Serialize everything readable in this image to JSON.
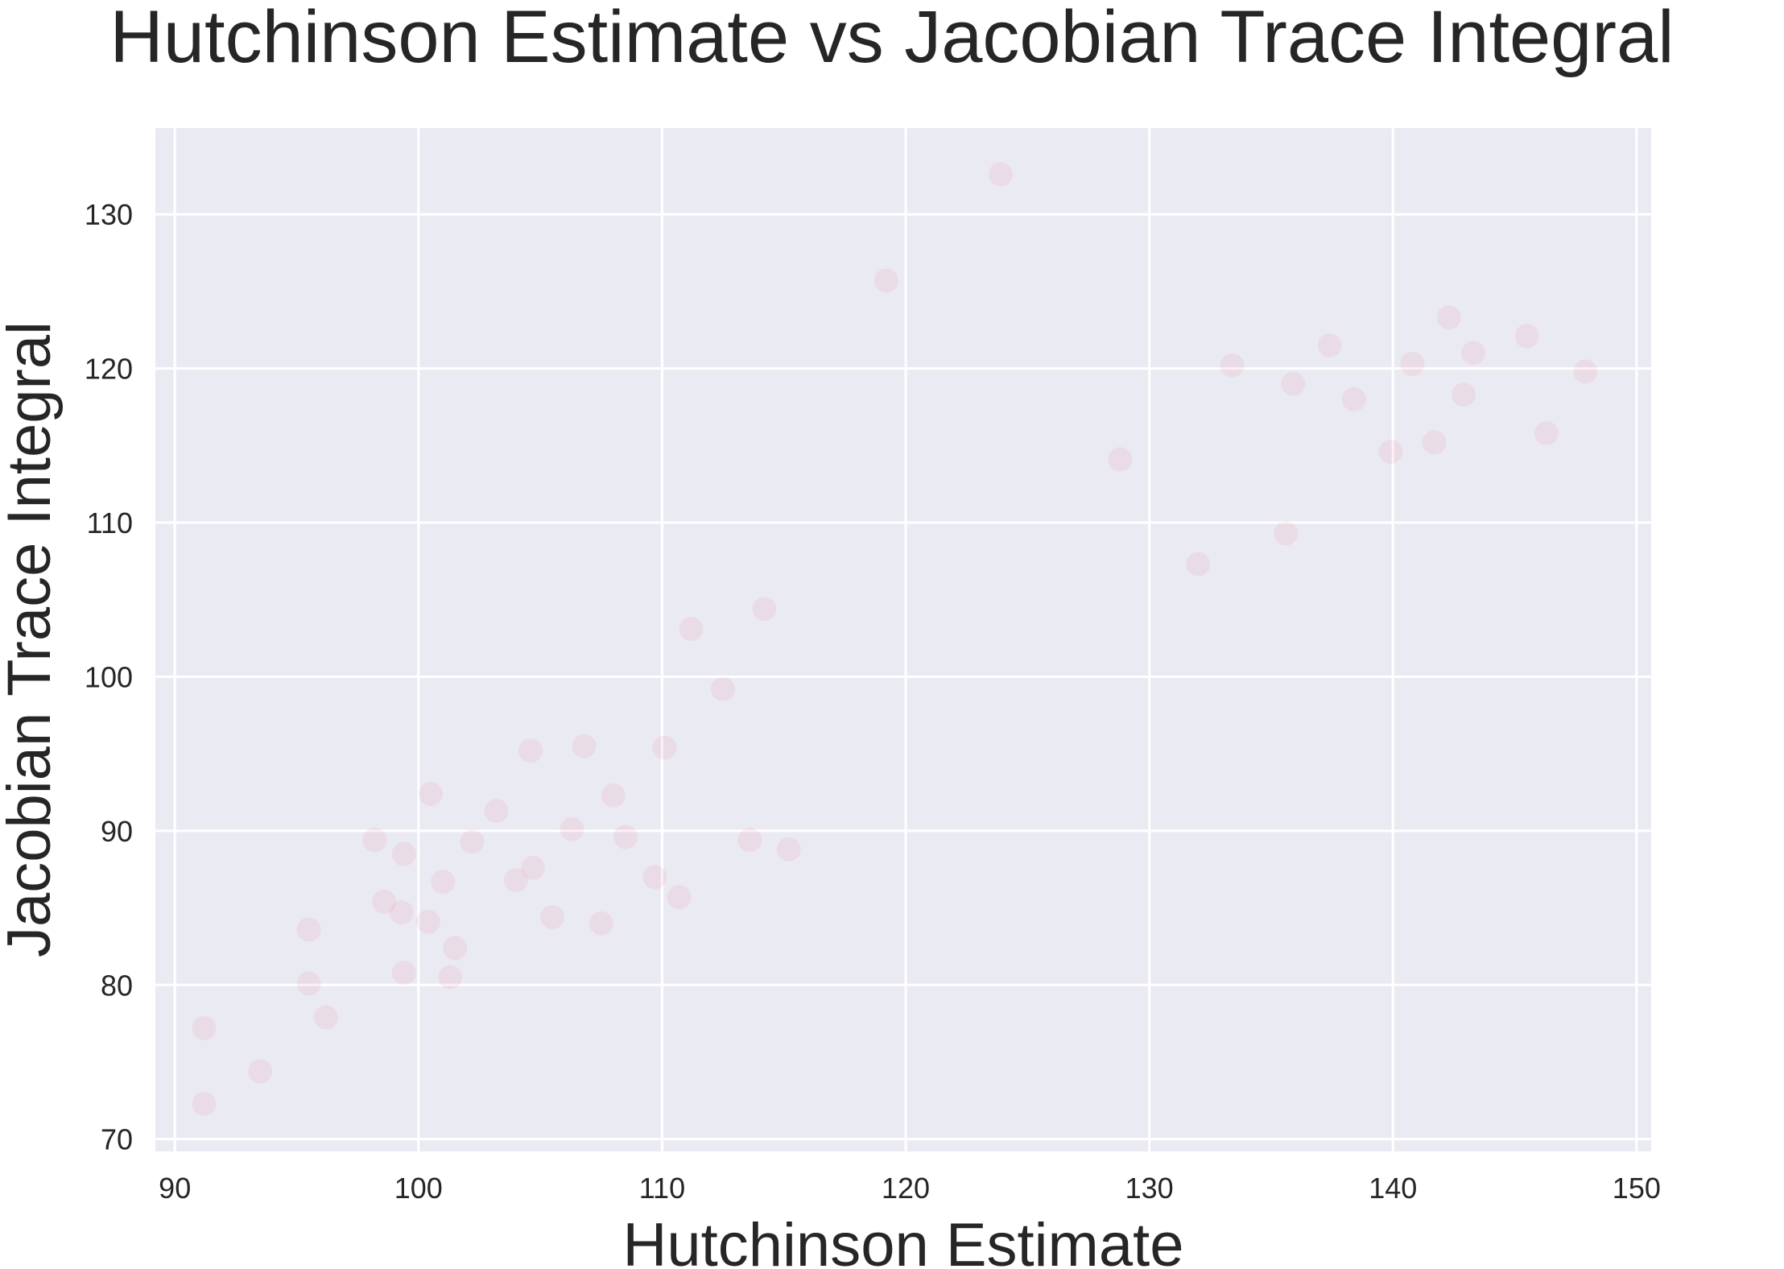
{
  "chart_data": {
    "type": "scatter",
    "title": "Hutchinson Estimate vs Jacobian Trace Integral",
    "xlabel": "Hutchinson Estimate",
    "ylabel": "Jacobian Trace Integral",
    "xlim": [
      89.2,
      150.6
    ],
    "ylim": [
      69.2,
      135.6
    ],
    "xticks": [
      90,
      100,
      110,
      120,
      130,
      140,
      150
    ],
    "yticks": [
      70,
      80,
      90,
      100,
      110,
      120,
      130
    ],
    "grid": true,
    "style": "seaborn-darkgrid",
    "colors": {
      "background": "#eaeaf2",
      "grid": "#ffffff",
      "marker": "#f07890"
    },
    "marker_alpha": 0.12,
    "series": [
      {
        "points": [
          [
            91.2,
            72.3
          ],
          [
            91.2,
            77.2
          ],
          [
            93.5,
            74.4
          ],
          [
            95.5,
            80.1
          ],
          [
            95.5,
            83.6
          ],
          [
            96.2,
            77.9
          ],
          [
            98.2,
            89.4
          ],
          [
            98.6,
            85.4
          ],
          [
            99.3,
            84.7
          ],
          [
            99.4,
            80.8
          ],
          [
            99.4,
            88.5
          ],
          [
            100.4,
            84.1
          ],
          [
            100.5,
            92.4
          ],
          [
            101.0,
            86.7
          ],
          [
            101.3,
            80.5
          ],
          [
            101.5,
            82.4
          ],
          [
            102.2,
            89.3
          ],
          [
            103.2,
            91.3
          ],
          [
            104.0,
            86.8
          ],
          [
            104.6,
            95.2
          ],
          [
            104.7,
            87.6
          ],
          [
            105.5,
            84.4
          ],
          [
            106.3,
            90.1
          ],
          [
            106.8,
            95.5
          ],
          [
            107.5,
            84.0
          ],
          [
            108.0,
            92.3
          ],
          [
            108.5,
            89.6
          ],
          [
            109.7,
            87.0
          ],
          [
            110.1,
            95.4
          ],
          [
            110.7,
            85.7
          ],
          [
            111.2,
            103.1
          ],
          [
            112.5,
            99.2
          ],
          [
            113.6,
            89.4
          ],
          [
            114.2,
            104.4
          ],
          [
            115.2,
            88.8
          ],
          [
            119.2,
            125.7
          ],
          [
            123.9,
            132.6
          ],
          [
            128.8,
            114.1
          ],
          [
            132.0,
            107.3
          ],
          [
            133.4,
            120.2
          ],
          [
            135.6,
            109.3
          ],
          [
            135.9,
            119.0
          ],
          [
            137.4,
            121.5
          ],
          [
            138.4,
            118.0
          ],
          [
            139.9,
            114.6
          ],
          [
            140.8,
            120.3
          ],
          [
            141.7,
            115.2
          ],
          [
            142.3,
            123.3
          ],
          [
            142.9,
            118.3
          ],
          [
            143.3,
            121.0
          ],
          [
            145.5,
            122.1
          ],
          [
            146.3,
            115.8
          ],
          [
            147.9,
            119.8
          ]
        ]
      }
    ]
  }
}
